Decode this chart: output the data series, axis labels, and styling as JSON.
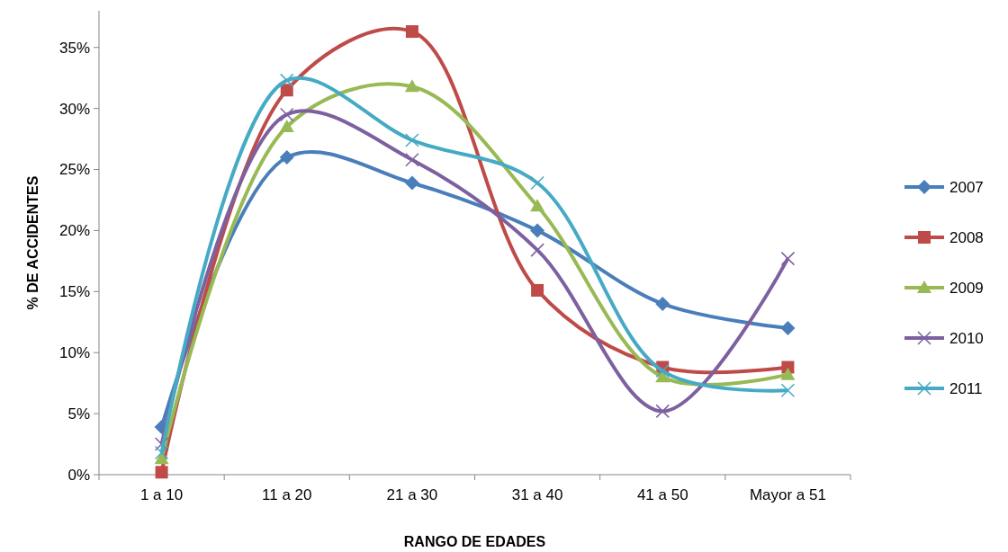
{
  "chart_data": {
    "type": "line",
    "xlabel": "RANGO DE EDADES",
    "ylabel": "% DE ACCIDENTES",
    "categories": [
      "1 a 10",
      "11 a 20",
      "21 a 30",
      "31 a 40",
      "41 a 50",
      "Mayor a 51"
    ],
    "ylim": [
      0,
      38
    ],
    "yticks": [
      {
        "value": 0,
        "label": "0%"
      },
      {
        "value": 5,
        "label": "5%"
      },
      {
        "value": 10,
        "label": "10%"
      },
      {
        "value": 15,
        "label": "15%"
      },
      {
        "value": 20,
        "label": "20%"
      },
      {
        "value": 25,
        "label": "25%"
      },
      {
        "value": 30,
        "label": "30%"
      },
      {
        "value": 35,
        "label": "35%"
      }
    ],
    "grid": false,
    "legend": "right",
    "series": [
      {
        "name": "2007",
        "color": "#4a7ebb",
        "marker": "diamond",
        "values": [
          3.9,
          26.0,
          23.9,
          20.0,
          14.0,
          12.0
        ]
      },
      {
        "name": "2008",
        "color": "#be4b48",
        "marker": "square",
        "values": [
          0.2,
          31.5,
          36.3,
          15.1,
          8.8,
          8.8
        ]
      },
      {
        "name": "2009",
        "color": "#98b954",
        "marker": "triangle",
        "values": [
          1.3,
          28.5,
          31.8,
          22.0,
          8.0,
          8.2
        ]
      },
      {
        "name": "2010",
        "color": "#7d60a0",
        "marker": "cross",
        "values": [
          2.5,
          29.5,
          25.8,
          18.4,
          5.2,
          17.7
        ]
      },
      {
        "name": "2011",
        "color": "#46aac5",
        "marker": "cross",
        "values": [
          1.8,
          32.3,
          27.4,
          23.9,
          8.5,
          6.9
        ]
      }
    ]
  }
}
